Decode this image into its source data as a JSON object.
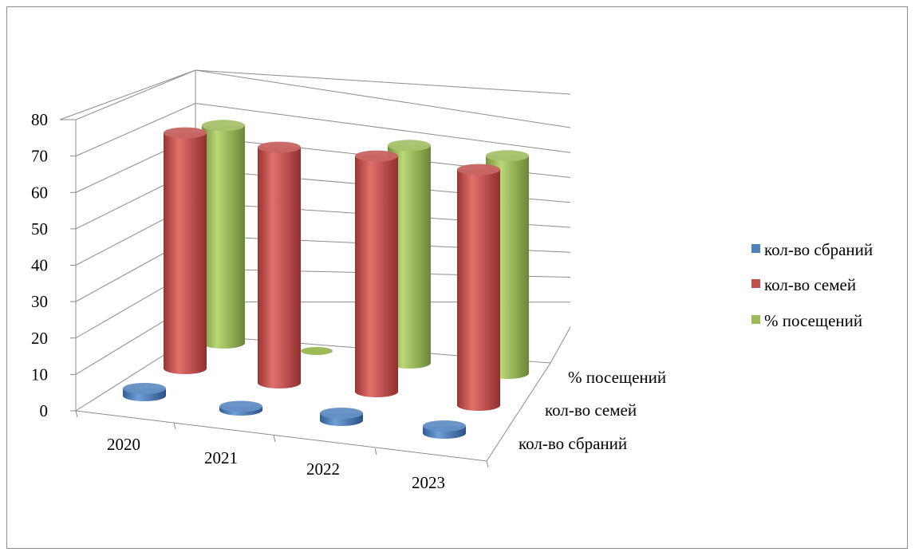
{
  "chart_data": {
    "type": "bar",
    "subtype": "3d-cylinder",
    "title": "",
    "categories": [
      "2020",
      "2021",
      "2022",
      "2023"
    ],
    "depth_labels": [
      "кол-во сбраний",
      "кол-во семей",
      "% посещений"
    ],
    "series": [
      {
        "name": "кол-во сбраний",
        "color": "#4f81bd",
        "values": [
          2,
          1,
          2,
          2
        ]
      },
      {
        "name": "кол-во семей",
        "color": "#c0504d",
        "values": [
          70,
          70,
          70,
          70
        ]
      },
      {
        "name": "% посещений",
        "color": "#9bbb59",
        "values": [
          67,
          0,
          67,
          67
        ]
      }
    ],
    "y_ticks": [
      "0",
      "10",
      "20",
      "30",
      "40",
      "50",
      "60",
      "70",
      "80"
    ],
    "ylim": [
      0,
      80
    ],
    "grid": true,
    "legend": "right"
  }
}
